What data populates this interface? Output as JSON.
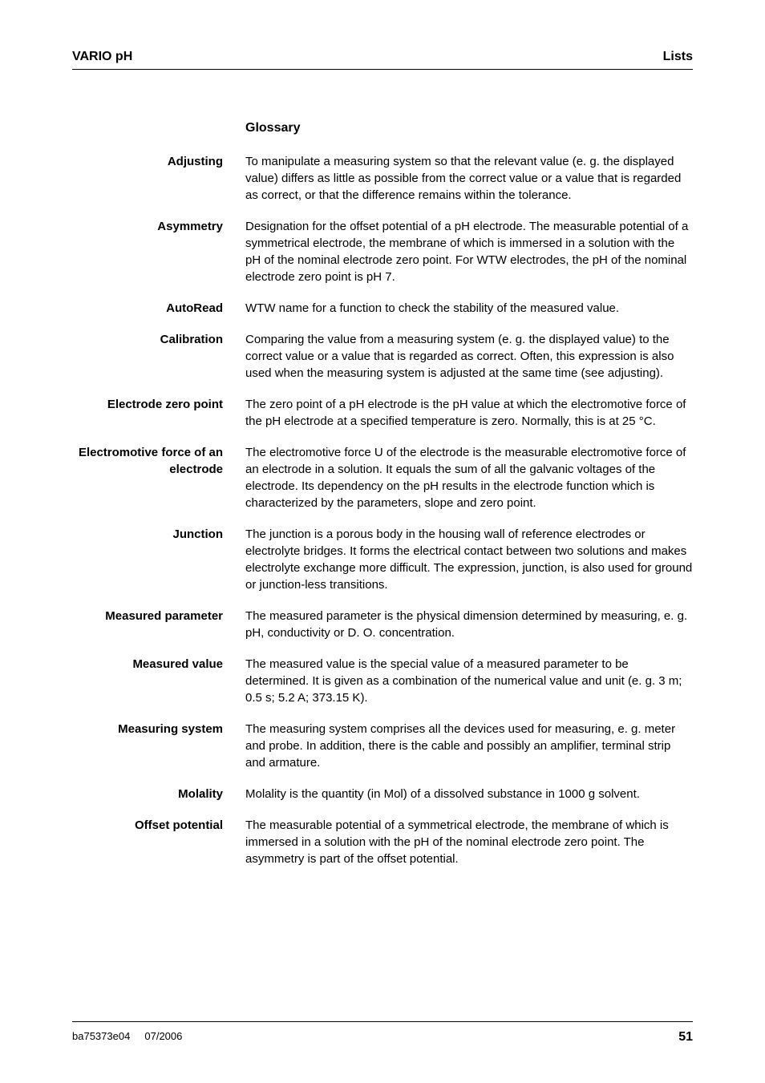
{
  "header": {
    "left": "VARIO pH",
    "right": "Lists"
  },
  "section_title": "Glossary",
  "entries": [
    {
      "term": "Adjusting",
      "def": "To manipulate a measuring system so that the relevant value (e. g. the displayed value) differs as little as possible from the correct value or a value that is regarded as correct, or that the difference remains within the tolerance."
    },
    {
      "term": "Asymmetry",
      "def": "Designation for the offset potential of a pH electrode. The measurable potential of a symmetrical electrode, the membrane of which is immersed in a solution with the pH of the nominal electrode zero point. For WTW electrodes, the pH of the nominal electrode zero point is pH 7."
    },
    {
      "term": "AutoRead",
      "def": "WTW name for a function to check the stability of the measured value."
    },
    {
      "term": "Calibration",
      "def": "Comparing the value from a measuring system (e. g. the displayed value) to the correct value or a value that is regarded as correct. Often, this expression is also used when the measuring system is adjusted at the same time (see adjusting)."
    },
    {
      "term": "Electrode zero point",
      "def": "The zero point of a pH electrode is the pH value at which the electromotive force of the pH electrode at a specified temperature is zero. Normally, this is at 25 °C."
    },
    {
      "term": "Electromotive force of an electrode",
      "def": "The electromotive force U of the electrode is the measurable electromotive force of an electrode in a solution. It equals the sum of all the galvanic voltages of the electrode. Its dependency on the pH results in the electrode function which is characterized by the parameters, slope and zero point."
    },
    {
      "term": "Junction",
      "def": "The junction is a porous body in the housing wall of reference electrodes or electrolyte bridges. It forms the electrical contact between two solutions and makes electrolyte exchange more difficult. The expression, junction, is also used for ground or junction-less transitions."
    },
    {
      "term": "Measured parameter",
      "def": "The measured parameter is the physical dimension determined by measuring, e. g. pH, conductivity or D. O. concentration."
    },
    {
      "term": "Measured value",
      "def": "The measured value is the special value of a measured parameter to be determined. It is given as a combination of the numerical value and unit (e. g. 3 m; 0.5 s; 5.2 A; 373.15 K)."
    },
    {
      "term": "Measuring system",
      "def": "The measuring system comprises all the devices used for measuring, e. g. meter and probe. In addition, there is the cable and possibly an amplifier, terminal strip and armature."
    },
    {
      "term": "Molality",
      "def": "Molality is the quantity (in Mol) of a dissolved substance in 1000 g solvent."
    },
    {
      "term": "Offset potential",
      "def": "The measurable potential of a symmetrical electrode, the membrane of which is immersed in a solution with the pH of the nominal electrode zero point. The asymmetry is part of the offset potential."
    }
  ],
  "footer": {
    "doc": "ba75373e04",
    "date": "07/2006",
    "page": "51"
  },
  "style": {
    "page_bg": "#ffffff",
    "text_color": "#000000",
    "rule_color": "#000000",
    "body_fontsize": 15,
    "header_fontsize": 16,
    "footer_fontsize": 13,
    "page_number_fontsize": 16,
    "term_col_width": 216,
    "line_height": 1.4
  }
}
